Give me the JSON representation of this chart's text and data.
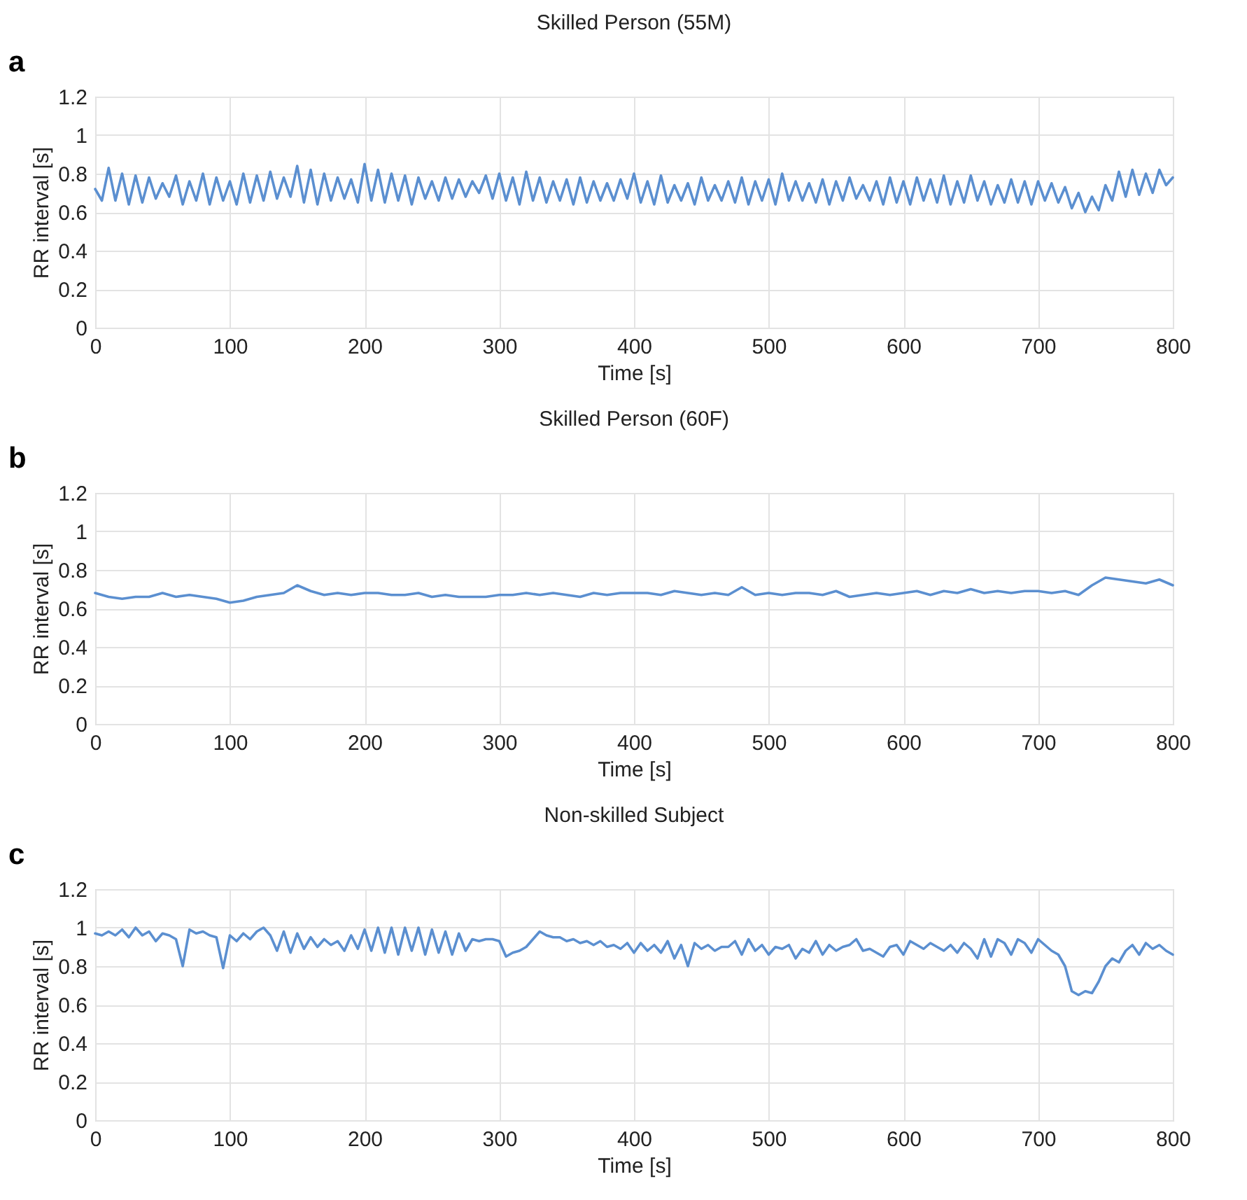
{
  "chart_data": [
    {
      "type": "line",
      "title": "Skilled Person (55M)",
      "xlabel": "Time [s]",
      "ylabel": "RR interval [s]",
      "annotations": [
        "a"
      ],
      "xlim": [
        0,
        800
      ],
      "ylim": [
        0,
        1.2
      ],
      "xticks": [
        0,
        100,
        200,
        300,
        400,
        500,
        600,
        700,
        800
      ],
      "yticks": [
        0,
        0.2,
        0.4,
        0.6,
        0.8,
        1,
        1.2
      ],
      "grid": true,
      "line_style": "solid",
      "x": [
        0,
        5,
        10,
        15,
        20,
        25,
        30,
        35,
        40,
        45,
        50,
        55,
        60,
        65,
        70,
        75,
        80,
        85,
        90,
        95,
        100,
        105,
        110,
        115,
        120,
        125,
        130,
        135,
        140,
        145,
        150,
        155,
        160,
        165,
        170,
        175,
        180,
        185,
        190,
        195,
        200,
        205,
        210,
        215,
        220,
        225,
        230,
        235,
        240,
        245,
        250,
        255,
        260,
        265,
        270,
        275,
        280,
        285,
        290,
        295,
        300,
        305,
        310,
        315,
        320,
        325,
        330,
        335,
        340,
        345,
        350,
        355,
        360,
        365,
        370,
        375,
        380,
        385,
        390,
        395,
        400,
        405,
        410,
        415,
        420,
        425,
        430,
        435,
        440,
        445,
        450,
        455,
        460,
        465,
        470,
        475,
        480,
        485,
        490,
        495,
        500,
        505,
        510,
        515,
        520,
        525,
        530,
        535,
        540,
        545,
        550,
        555,
        560,
        565,
        570,
        575,
        580,
        585,
        590,
        595,
        600,
        605,
        610,
        615,
        620,
        625,
        630,
        635,
        640,
        645,
        650,
        655,
        660,
        665,
        670,
        675,
        680,
        685,
        690,
        695,
        700,
        705,
        710,
        715,
        720,
        725,
        730,
        735,
        740,
        745,
        750,
        755,
        760,
        765,
        770,
        775,
        780,
        785,
        790,
        795,
        800
      ],
      "series": [
        {
          "color": "#5b8fd0",
          "values": [
            0.72,
            0.66,
            0.83,
            0.66,
            0.8,
            0.64,
            0.79,
            0.65,
            0.78,
            0.67,
            0.75,
            0.68,
            0.79,
            0.64,
            0.76,
            0.66,
            0.8,
            0.64,
            0.78,
            0.66,
            0.76,
            0.64,
            0.8,
            0.65,
            0.79,
            0.66,
            0.81,
            0.67,
            0.78,
            0.68,
            0.84,
            0.65,
            0.82,
            0.64,
            0.8,
            0.66,
            0.78,
            0.67,
            0.77,
            0.65,
            0.85,
            0.66,
            0.82,
            0.65,
            0.8,
            0.66,
            0.79,
            0.64,
            0.78,
            0.67,
            0.76,
            0.66,
            0.78,
            0.67,
            0.77,
            0.68,
            0.76,
            0.7,
            0.79,
            0.67,
            0.8,
            0.66,
            0.78,
            0.64,
            0.81,
            0.66,
            0.78,
            0.65,
            0.76,
            0.66,
            0.77,
            0.64,
            0.78,
            0.65,
            0.76,
            0.66,
            0.75,
            0.66,
            0.77,
            0.67,
            0.8,
            0.65,
            0.76,
            0.64,
            0.79,
            0.65,
            0.74,
            0.66,
            0.75,
            0.64,
            0.78,
            0.66,
            0.74,
            0.66,
            0.76,
            0.65,
            0.78,
            0.64,
            0.76,
            0.66,
            0.77,
            0.64,
            0.8,
            0.66,
            0.76,
            0.66,
            0.75,
            0.65,
            0.77,
            0.64,
            0.76,
            0.66,
            0.78,
            0.67,
            0.74,
            0.66,
            0.76,
            0.64,
            0.78,
            0.65,
            0.76,
            0.64,
            0.78,
            0.66,
            0.77,
            0.65,
            0.79,
            0.64,
            0.76,
            0.65,
            0.79,
            0.66,
            0.76,
            0.64,
            0.74,
            0.65,
            0.77,
            0.65,
            0.76,
            0.64,
            0.76,
            0.66,
            0.75,
            0.65,
            0.73,
            0.62,
            0.7,
            0.6,
            0.68,
            0.61,
            0.74,
            0.66,
            0.81,
            0.68,
            0.82,
            0.69,
            0.8,
            0.7,
            0.82,
            0.74,
            0.78
          ]
        }
      ]
    },
    {
      "type": "line",
      "title": "Skilled Person (60F)",
      "xlabel": "Time [s]",
      "ylabel": "RR interval [s]",
      "annotations": [
        "b"
      ],
      "xlim": [
        0,
        800
      ],
      "ylim": [
        0,
        1.2
      ],
      "xticks": [
        0,
        100,
        200,
        300,
        400,
        500,
        600,
        700,
        800
      ],
      "yticks": [
        0,
        0.2,
        0.4,
        0.6,
        0.8,
        1,
        1.2
      ],
      "grid": true,
      "line_style": "solid",
      "x": [
        0,
        10,
        20,
        30,
        40,
        50,
        60,
        70,
        80,
        90,
        100,
        110,
        120,
        130,
        140,
        150,
        160,
        170,
        180,
        190,
        200,
        210,
        220,
        230,
        240,
        250,
        260,
        270,
        280,
        290,
        300,
        310,
        320,
        330,
        340,
        350,
        360,
        370,
        380,
        390,
        400,
        410,
        420,
        430,
        440,
        450,
        460,
        470,
        480,
        490,
        500,
        510,
        520,
        530,
        540,
        550,
        560,
        570,
        580,
        590,
        600,
        610,
        620,
        630,
        640,
        650,
        660,
        670,
        680,
        690,
        700,
        710,
        720,
        730,
        740,
        750,
        760,
        770,
        780,
        790,
        800
      ],
      "series": [
        {
          "color": "#5b8fd0",
          "values": [
            0.68,
            0.66,
            0.65,
            0.66,
            0.66,
            0.68,
            0.66,
            0.67,
            0.66,
            0.65,
            0.63,
            0.64,
            0.66,
            0.67,
            0.68,
            0.72,
            0.69,
            0.67,
            0.68,
            0.67,
            0.68,
            0.68,
            0.67,
            0.67,
            0.68,
            0.66,
            0.67,
            0.66,
            0.66,
            0.66,
            0.67,
            0.67,
            0.68,
            0.67,
            0.68,
            0.67,
            0.66,
            0.68,
            0.67,
            0.68,
            0.68,
            0.68,
            0.67,
            0.69,
            0.68,
            0.67,
            0.68,
            0.67,
            0.71,
            0.67,
            0.68,
            0.67,
            0.68,
            0.68,
            0.67,
            0.69,
            0.66,
            0.67,
            0.68,
            0.67,
            0.68,
            0.69,
            0.67,
            0.69,
            0.68,
            0.7,
            0.68,
            0.69,
            0.68,
            0.69,
            0.69,
            0.68,
            0.69,
            0.67,
            0.72,
            0.76,
            0.75,
            0.74,
            0.73,
            0.75,
            0.72
          ]
        }
      ]
    },
    {
      "type": "line",
      "title": "Non-skilled Subject",
      "xlabel": "Time [s]",
      "ylabel": "RR interval [s]",
      "annotations": [
        "c"
      ],
      "xlim": [
        0,
        800
      ],
      "ylim": [
        0,
        1.2
      ],
      "xticks": [
        0,
        100,
        200,
        300,
        400,
        500,
        600,
        700,
        800
      ],
      "yticks": [
        0,
        0.2,
        0.4,
        0.6,
        0.8,
        1,
        1.2
      ],
      "grid": true,
      "line_style": "solid",
      "x": [
        0,
        5,
        10,
        15,
        20,
        25,
        30,
        35,
        40,
        45,
        50,
        55,
        60,
        65,
        70,
        75,
        80,
        85,
        90,
        95,
        100,
        105,
        110,
        115,
        120,
        125,
        130,
        135,
        140,
        145,
        150,
        155,
        160,
        165,
        170,
        175,
        180,
        185,
        190,
        195,
        200,
        205,
        210,
        215,
        220,
        225,
        230,
        235,
        240,
        245,
        250,
        255,
        260,
        265,
        270,
        275,
        280,
        285,
        290,
        295,
        300,
        305,
        310,
        315,
        320,
        325,
        330,
        335,
        340,
        345,
        350,
        355,
        360,
        365,
        370,
        375,
        380,
        385,
        390,
        395,
        400,
        405,
        410,
        415,
        420,
        425,
        430,
        435,
        440,
        445,
        450,
        455,
        460,
        465,
        470,
        475,
        480,
        485,
        490,
        495,
        500,
        505,
        510,
        515,
        520,
        525,
        530,
        535,
        540,
        545,
        550,
        555,
        560,
        565,
        570,
        575,
        580,
        585,
        590,
        595,
        600,
        605,
        610,
        615,
        620,
        625,
        630,
        635,
        640,
        645,
        650,
        655,
        660,
        665,
        670,
        675,
        680,
        685,
        690,
        695,
        700,
        705,
        710,
        715,
        720,
        725,
        730,
        735,
        740,
        745,
        750,
        755,
        760,
        765,
        770,
        775,
        780,
        785,
        790,
        795,
        800
      ],
      "series": [
        {
          "color": "#5b8fd0",
          "values": [
            0.97,
            0.96,
            0.98,
            0.96,
            0.99,
            0.95,
            1.0,
            0.96,
            0.98,
            0.93,
            0.97,
            0.96,
            0.94,
            0.8,
            0.99,
            0.97,
            0.98,
            0.96,
            0.95,
            0.79,
            0.96,
            0.93,
            0.97,
            0.94,
            0.98,
            1.0,
            0.96,
            0.88,
            0.98,
            0.87,
            0.97,
            0.89,
            0.95,
            0.9,
            0.94,
            0.91,
            0.93,
            0.88,
            0.96,
            0.89,
            0.99,
            0.88,
            1.0,
            0.87,
            1.0,
            0.86,
            1.0,
            0.88,
            1.0,
            0.86,
            0.99,
            0.87,
            0.98,
            0.86,
            0.97,
            0.88,
            0.94,
            0.93,
            0.94,
            0.94,
            0.93,
            0.85,
            0.87,
            0.88,
            0.9,
            0.94,
            0.98,
            0.96,
            0.95,
            0.95,
            0.93,
            0.94,
            0.92,
            0.93,
            0.91,
            0.93,
            0.9,
            0.91,
            0.89,
            0.92,
            0.87,
            0.92,
            0.88,
            0.91,
            0.87,
            0.93,
            0.84,
            0.91,
            0.8,
            0.92,
            0.89,
            0.91,
            0.88,
            0.9,
            0.9,
            0.93,
            0.86,
            0.94,
            0.88,
            0.91,
            0.86,
            0.9,
            0.89,
            0.91,
            0.84,
            0.89,
            0.87,
            0.93,
            0.86,
            0.91,
            0.88,
            0.9,
            0.91,
            0.94,
            0.88,
            0.89,
            0.87,
            0.85,
            0.9,
            0.91,
            0.86,
            0.93,
            0.91,
            0.89,
            0.92,
            0.9,
            0.88,
            0.91,
            0.87,
            0.92,
            0.89,
            0.84,
            0.94,
            0.85,
            0.94,
            0.92,
            0.86,
            0.94,
            0.92,
            0.87,
            0.94,
            0.91,
            0.88,
            0.86,
            0.8,
            0.67,
            0.65,
            0.67,
            0.66,
            0.72,
            0.8,
            0.84,
            0.82,
            0.88,
            0.91,
            0.86,
            0.92,
            0.89,
            0.91,
            0.88,
            0.86
          ]
        }
      ]
    }
  ]
}
